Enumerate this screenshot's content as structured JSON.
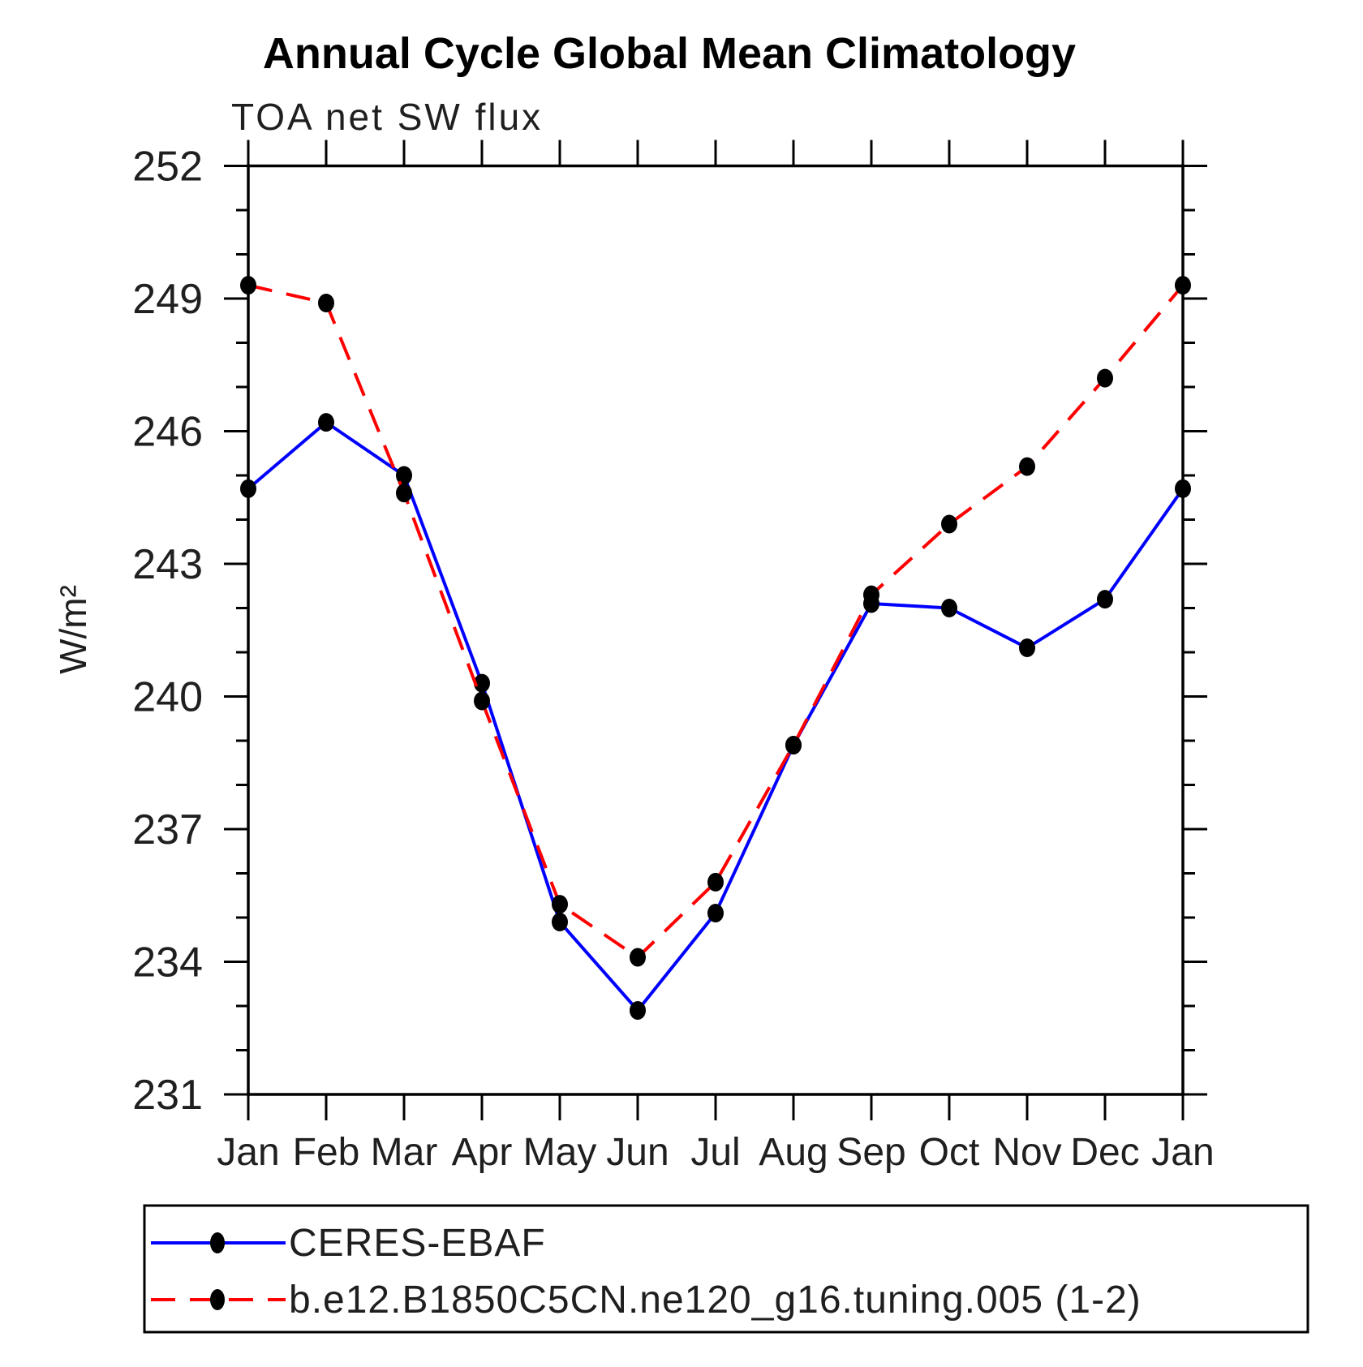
{
  "header": {
    "title": "Annual Cycle Global Mean Climatology",
    "subtitle": "TOA net SW flux"
  },
  "chart_data": {
    "type": "line",
    "title": "Annual Cycle Global Mean Climatology",
    "subtitle": "TOA net SW flux",
    "xlabel": "",
    "ylabel": "W/m²",
    "categories": [
      "Jan",
      "Feb",
      "Mar",
      "Apr",
      "May",
      "Jun",
      "Jul",
      "Aug",
      "Sep",
      "Oct",
      "Nov",
      "Dec",
      "Jan"
    ],
    "ylim": [
      231,
      252
    ],
    "yticks_major": [
      231,
      234,
      237,
      240,
      243,
      246,
      249,
      252
    ],
    "ytick_minor_step": 1,
    "grid": false,
    "legend_position": "bottom-left",
    "axis_color": "#000000",
    "marker_color": "#000000",
    "series": [
      {
        "name": "CERES-EBAF",
        "color": "#0000ff",
        "line_style": "solid",
        "marker": "circle",
        "values": [
          244.7,
          246.2,
          245.0,
          240.3,
          234.9,
          232.9,
          235.1,
          238.9,
          242.1,
          242.0,
          241.1,
          242.2,
          244.7
        ]
      },
      {
        "name": "b.e12.B1850C5CN.ne120_g16.tuning.005 (1-2)",
        "color": "#ff0000",
        "line_style": "dashed",
        "marker": "circle",
        "values": [
          249.3,
          248.9,
          244.6,
          239.9,
          235.3,
          234.1,
          235.8,
          238.9,
          242.3,
          243.9,
          245.2,
          247.2,
          249.3
        ]
      }
    ]
  }
}
